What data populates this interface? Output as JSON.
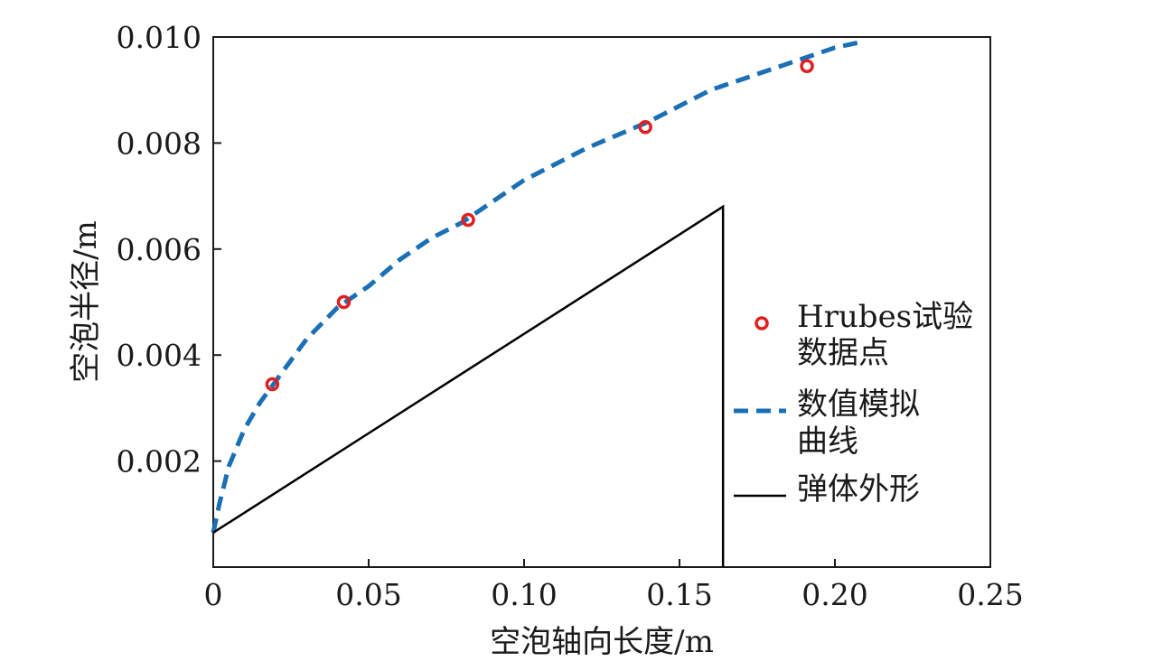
{
  "chart_data": {
    "type": "line",
    "xlabel": "空泡轴向长度/m",
    "ylabel": "空泡半径/m",
    "xlim": [
      0,
      0.25
    ],
    "ylim": [
      0,
      0.01
    ],
    "x_ticks": [
      "0",
      "0.05",
      "0.10",
      "0.15",
      "0.20",
      "0.25"
    ],
    "y_ticks": [
      "0.002",
      "0.004",
      "0.006",
      "0.008",
      "0.010"
    ],
    "x_tick_values": [
      0,
      0.05,
      0.1,
      0.15,
      0.2,
      0.25
    ],
    "y_tick_values": [
      0.002,
      0.004,
      0.006,
      0.008,
      0.01
    ],
    "legend_position": "right",
    "series": [
      {
        "name": "Hrubes试验数据点",
        "legend_lines": [
          "Hrubes试验",
          "数据点"
        ],
        "kind": "scatter",
        "color": "#e02020",
        "points": [
          [
            0.019,
            0.00345
          ],
          [
            0.042,
            0.005
          ],
          [
            0.082,
            0.00655
          ],
          [
            0.139,
            0.0083
          ],
          [
            0.191,
            0.00945
          ]
        ]
      },
      {
        "name": "数值模拟曲线",
        "legend_lines": [
          "数值模拟",
          "曲线"
        ],
        "kind": "dashed-line",
        "color": "#1a6fb5",
        "points": [
          [
            0.0,
            0.00065
          ],
          [
            0.002,
            0.0012
          ],
          [
            0.005,
            0.0019
          ],
          [
            0.01,
            0.0026
          ],
          [
            0.015,
            0.0031
          ],
          [
            0.02,
            0.0035
          ],
          [
            0.03,
            0.0043
          ],
          [
            0.04,
            0.0049
          ],
          [
            0.05,
            0.0053
          ],
          [
            0.06,
            0.0058
          ],
          [
            0.07,
            0.0062
          ],
          [
            0.08,
            0.0065
          ],
          [
            0.1,
            0.0073
          ],
          [
            0.12,
            0.0079
          ],
          [
            0.14,
            0.0084
          ],
          [
            0.16,
            0.009
          ],
          [
            0.18,
            0.0094
          ],
          [
            0.2,
            0.0098
          ],
          [
            0.208,
            0.0099
          ]
        ]
      },
      {
        "name": "弹体外形",
        "legend_lines": [
          "弹体外形"
        ],
        "kind": "solid-line",
        "color": "#000000",
        "points": [
          [
            0.0,
            0.00065
          ],
          [
            0.164,
            0.0068
          ],
          [
            0.164,
            0.0
          ]
        ]
      }
    ]
  }
}
